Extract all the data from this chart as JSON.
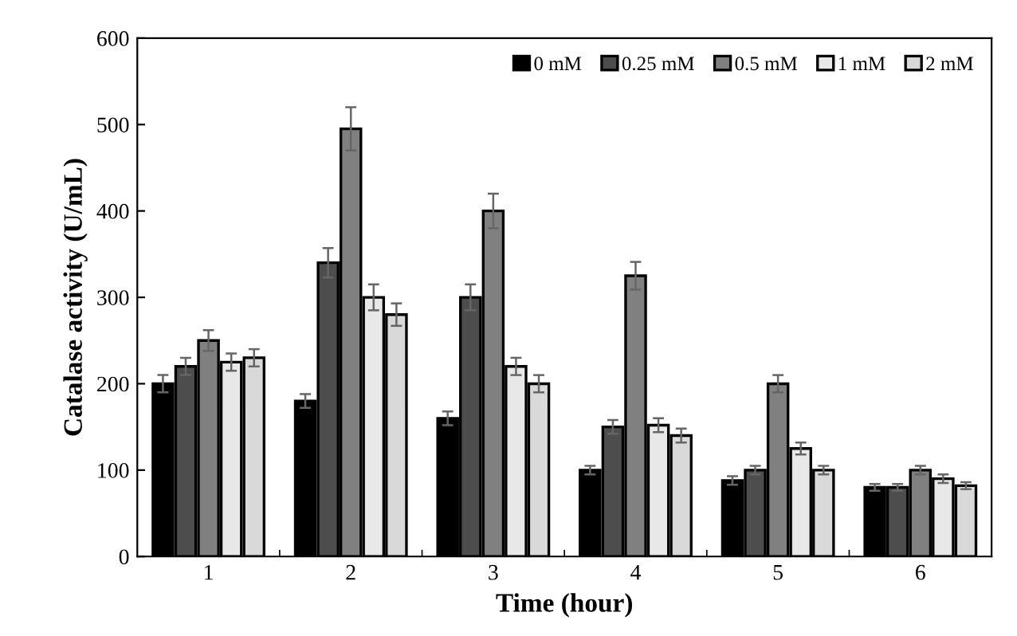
{
  "chart_data": {
    "type": "bar",
    "xlabel": "Time (hour)",
    "ylabel": "Catalase activity (U/mL)",
    "categories": [
      "1",
      "2",
      "3",
      "4",
      "5",
      "6"
    ],
    "series": [
      {
        "name": "0 mM",
        "color": "#000000",
        "values": [
          200,
          180,
          160,
          100,
          88,
          80
        ],
        "errors": [
          10,
          8,
          8,
          5,
          5,
          4
        ]
      },
      {
        "name": "0.25 mM",
        "color": "#4d4d4d",
        "values": [
          220,
          340,
          300,
          150,
          100,
          80
        ],
        "errors": [
          10,
          17,
          15,
          8,
          5,
          4
        ]
      },
      {
        "name": "0.5 mM",
        "color": "#808080",
        "values": [
          250,
          495,
          400,
          325,
          200,
          100
        ],
        "errors": [
          12,
          25,
          20,
          16,
          10,
          5
        ]
      },
      {
        "name": "1 mM",
        "color": "#e8e8e8",
        "values": [
          225,
          300,
          220,
          152,
          125,
          90
        ],
        "errors": [
          10,
          15,
          10,
          8,
          7,
          5
        ]
      },
      {
        "name": "2 mM",
        "color": "#d9d9d9",
        "values": [
          230,
          280,
          200,
          140,
          100,
          82
        ],
        "errors": [
          10,
          13,
          10,
          8,
          5,
          4
        ]
      }
    ],
    "ylim": [
      0,
      600
    ],
    "yticks": [
      0,
      100,
      200,
      300,
      400,
      500,
      600
    ],
    "grid": false,
    "legend": "top right"
  }
}
